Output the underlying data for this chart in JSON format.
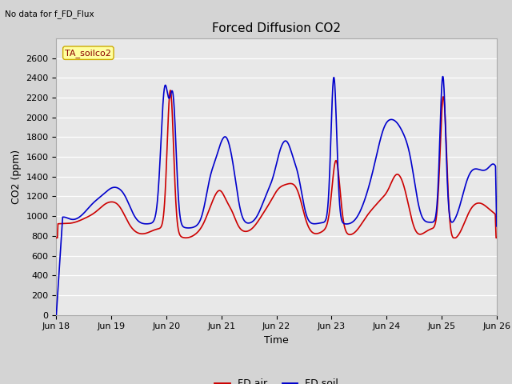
{
  "title": "Forced Diffusion CO2",
  "top_left_text": "No data for f_FD_Flux",
  "annotation_box": "TA_soilco2",
  "xlabel": "Time",
  "ylabel": "CO2 (ppm)",
  "ylim": [
    0,
    2800
  ],
  "yticks": [
    0,
    200,
    400,
    600,
    800,
    1000,
    1200,
    1400,
    1600,
    1800,
    2000,
    2200,
    2400,
    2600
  ],
  "xtick_labels": [
    "Jun 18",
    "Jun 19",
    "Jun 20",
    "Jun 21",
    "Jun 22",
    "Jun 23",
    "Jun 24",
    "Jun 25",
    "Jun 26"
  ],
  "color_red": "#cc0000",
  "color_blue": "#0000cc",
  "legend_entries": [
    "FD air",
    "FD soil"
  ],
  "bg_color": "#e8e8e8",
  "grid_color": "#ffffff",
  "title_fontsize": 11,
  "label_fontsize": 9,
  "tick_fontsize": 8,
  "annotation_fontsize": 8
}
